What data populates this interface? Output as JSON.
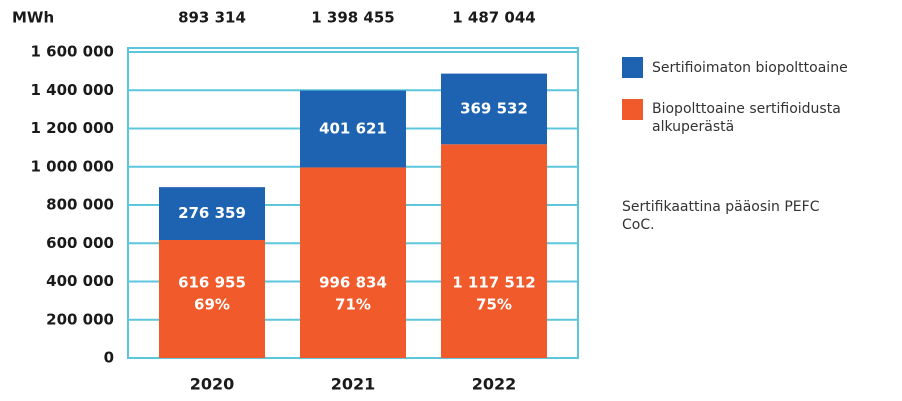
{
  "chart_data": {
    "type": "stacked-bar",
    "unit_label": "MWh",
    "categories": [
      "2020",
      "2021",
      "2022"
    ],
    "totals": [
      893314,
      1398455,
      1487044
    ],
    "total_labels": [
      "893 314",
      "1 398 455",
      "1 487 044"
    ],
    "series": [
      {
        "name": "Biopolttoaine sertifioidusta alkuperästä",
        "color": "#f15a2b",
        "values": [
          616955,
          996834,
          1117512
        ],
        "value_labels": [
          "616 955",
          "996 834",
          "1 117 512"
        ],
        "share_labels": [
          "69%",
          "71%",
          "75%"
        ]
      },
      {
        "name": "Sertifioimaton biopolttoaine",
        "color": "#1d63b1",
        "values": [
          276359,
          401621,
          369532
        ],
        "value_labels": [
          "276 359",
          "401 621",
          "369 532"
        ]
      }
    ],
    "ylim": [
      0,
      1600000
    ],
    "yticks": [
      {
        "value": 0,
        "label": "0"
      },
      {
        "value": 200000,
        "label": "200 000"
      },
      {
        "value": 400000,
        "label": "400 000"
      },
      {
        "value": 600000,
        "label": "600 000"
      },
      {
        "value": 800000,
        "label": "800 000"
      },
      {
        "value": 1000000,
        "label": "1 000 000"
      },
      {
        "value": 1200000,
        "label": "1 200 000"
      },
      {
        "value": 1400000,
        "label": "1 400 000"
      },
      {
        "value": 1600000,
        "label": "1 600 000"
      }
    ],
    "grid": true,
    "grid_color": "#5cc6dc",
    "note": "Sertifikaattina pääosin PEFC CoC."
  }
}
